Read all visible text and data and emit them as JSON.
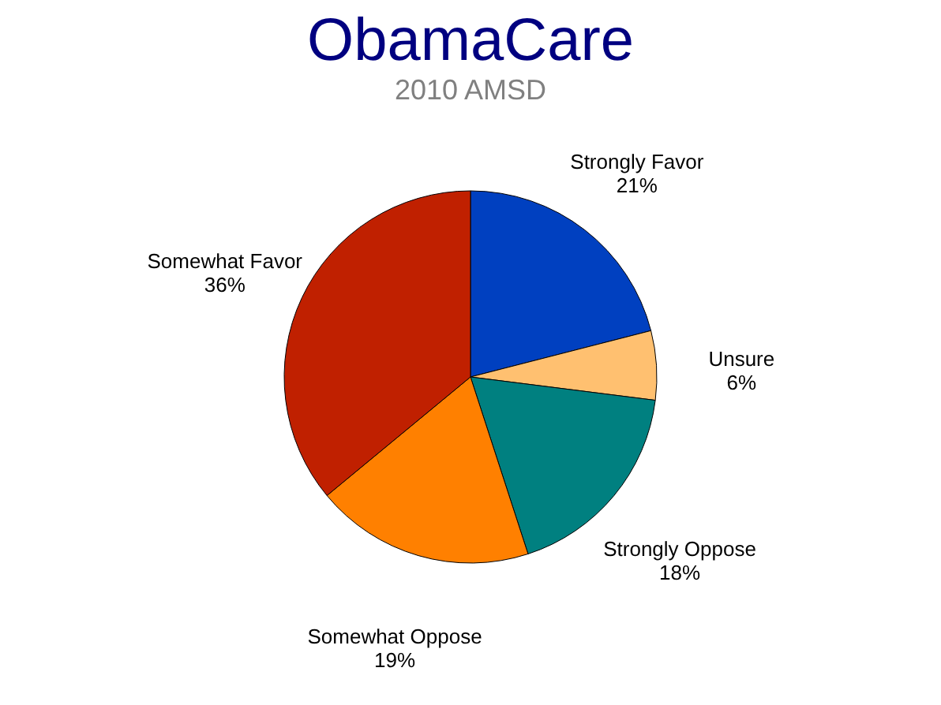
{
  "chart_data": {
    "type": "pie",
    "title": "ObamaCare",
    "subtitle": "2010 AMSD",
    "categories": [
      "Strongly Favor",
      "Unsure",
      "Strongly Oppose",
      "Somewhat Oppose",
      "Somewhat Favor"
    ],
    "values": [
      21,
      6,
      18,
      19,
      36
    ],
    "colors": [
      "#0040c0",
      "#ffc070",
      "#008080",
      "#ff8000",
      "#c02000"
    ],
    "value_labels": [
      "21%",
      "6%",
      "18%",
      "19%",
      "36%"
    ]
  }
}
